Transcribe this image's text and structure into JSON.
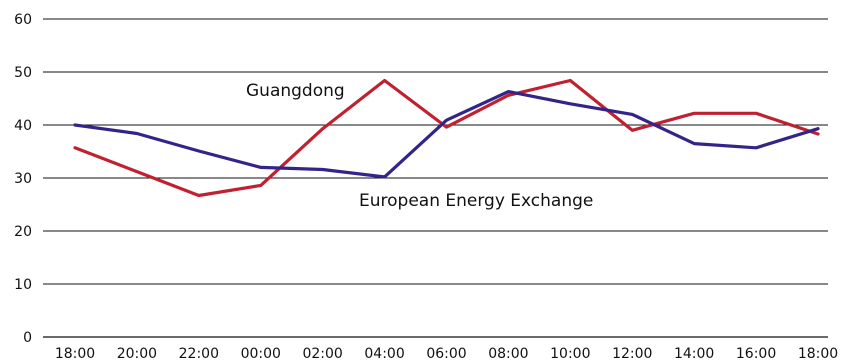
{
  "chart_data": {
    "type": "line",
    "title": "",
    "xlabel": "",
    "ylabel": "",
    "ylim": [
      0,
      60
    ],
    "yticks": [
      0,
      10,
      20,
      30,
      40,
      50,
      60
    ],
    "grid": true,
    "categories": [
      "18:00",
      "20:00",
      "22:00",
      "00:00",
      "02:00",
      "04:00",
      "06:00",
      "08:00",
      "10:00",
      "12:00",
      "14:00",
      "16:00",
      "18:00"
    ],
    "series": [
      {
        "name": "Guangdong",
        "color": "#c0202f",
        "values": [
          35.7,
          31.2,
          26.7,
          28.6,
          39.3,
          48.4,
          39.6,
          45.6,
          48.4,
          39.0,
          42.2,
          42.2,
          38.3
        ]
      },
      {
        "name": "European Energy Exchange",
        "color": "#33248a",
        "values": [
          40.0,
          38.4,
          35.1,
          32.0,
          31.6,
          30.2,
          40.9,
          46.3,
          44.0,
          42.0,
          36.5,
          35.7,
          39.3
        ]
      }
    ]
  }
}
